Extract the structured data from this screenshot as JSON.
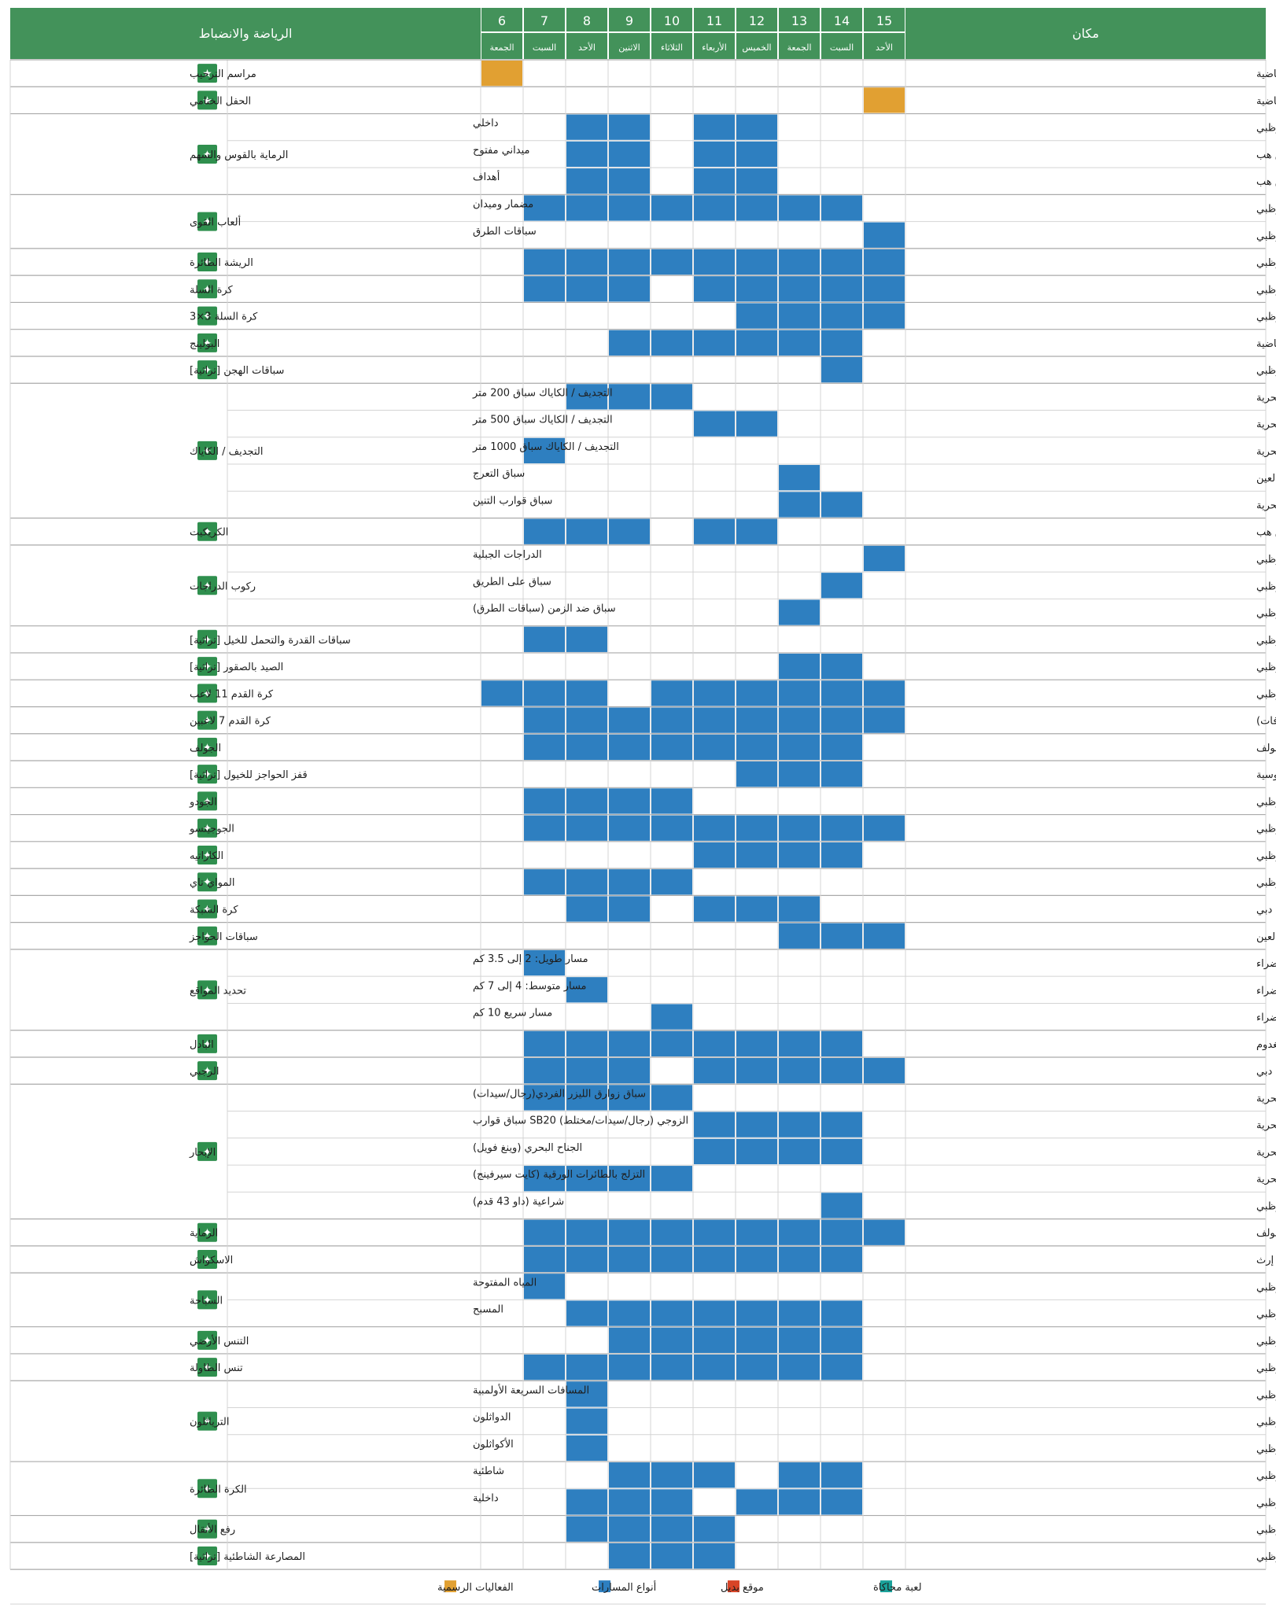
{
  "header": {
    "venue_label": "مكان",
    "sport_label": "الرياضة والانضباط",
    "days": [
      {
        "num": "15",
        "name": "الأحد"
      },
      {
        "num": "14",
        "name": "السبت"
      },
      {
        "num": "13",
        "name": "الجمعة"
      },
      {
        "num": "12",
        "name": "الخميس"
      },
      {
        "num": "11",
        "name": "الأربعاء"
      },
      {
        "num": "10",
        "name": "الثلاثاء"
      },
      {
        "num": "9",
        "name": "الاثنين"
      },
      {
        "num": "8",
        "name": "الأحد"
      },
      {
        "num": "7",
        "name": "السبت"
      },
      {
        "num": "6",
        "name": "الجمعة"
      }
    ]
  },
  "colors": {
    "header_green": "#43925a",
    "icon_green": "#2f8f4e",
    "competition_blue": "#2e7fc0",
    "ceremony_orange": "#e1a032",
    "alternate_red": "#d84427",
    "simulation_teal": "#1aa19a",
    "grid_line": "#d4d4d4",
    "group_line": "#aaaaaa"
  },
  "groups": [
    {
      "sport": "مراسم الترحيب",
      "icon": "star-icon",
      "rows": [
        {
          "venue": "استاد مدينة زايد الرياضية",
          "event": "",
          "days": [
            6
          ],
          "type": "ceremony"
        }
      ]
    },
    {
      "sport": "الحفل الختامي",
      "icon": "star-icon",
      "rows": [
        {
          "venue": "استاد مدينة زايد الرياضية",
          "event": "",
          "days": [
            15
          ],
          "type": "ceremony"
        }
      ]
    },
    {
      "sport": "الرماية بالقوس والسهم",
      "icon": "archery-icon",
      "rows": [
        {
          "venue": "مركز أدنيك أبوظبي",
          "event": "داخلي",
          "days": [
            8,
            9,
            11,
            12
          ]
        },
        {
          "venue": "أبوظبي كريكيت سبورتس هب",
          "event": "ميداني مفتوح",
          "days": [
            8,
            9,
            11,
            12
          ]
        },
        {
          "venue": "أبوظبي كريكيت سبورتس هب",
          "event": "أهداف",
          "days": [
            8,
            9,
            11,
            12
          ]
        }
      ]
    },
    {
      "sport": "ألعاب القوى",
      "icon": "athletics-icon",
      "rows": [
        {
          "venue": "جامعة نيويورك أبوظبي",
          "event": "مضمار وميدان",
          "days": [
            7,
            8,
            9,
            10,
            11,
            12,
            13,
            14
          ]
        },
        {
          "venue": "جزيرة الحديريات، أبوظبي",
          "event": "سباقات الطرق",
          "days": [
            15
          ]
        }
      ]
    },
    {
      "sport": "الريشة الطائرة",
      "icon": "badminton-icon",
      "rows": [
        {
          "venue": "مركز أدنيك أبوظبي",
          "event": "",
          "days": [
            7,
            8,
            9,
            10,
            11,
            12,
            13,
            14,
            15
          ]
        }
      ]
    },
    {
      "sport": "كرة السلة",
      "icon": "basketball-icon",
      "rows": [
        {
          "venue": "مركز أدنيك أبوظبي",
          "event": "",
          "days": [
            7,
            8,
            9,
            11,
            12,
            13,
            14,
            15
          ]
        }
      ]
    },
    {
      "sport": "كرة السلة 3×3",
      "icon": "basketball-3x3-icon",
      "rows": [
        {
          "venue": "مركز أدنيك أبوظبي",
          "event": "",
          "days": [
            12,
            13,
            14,
            15
          ]
        }
      ]
    },
    {
      "sport": "البولينج",
      "icon": "bowling-icon",
      "rows": [
        {
          "venue": "مركز خليفة الدولي للبولينج – مدينة زايد الرياضية",
          "event": "",
          "days": [
            9,
            10,
            11,
            12,
            13,
            14
          ]
        }
      ]
    },
    {
      "sport": "سباقات الهجن [تراثية]",
      "icon": "camel-racing-icon",
      "rows": [
        {
          "venue": "حلبة سباق الوثبة للهجن، أبوظبي",
          "event": "",
          "days": [
            14
          ]
        }
      ]
    },
    {
      "sport": "التجديف / الكاياك",
      "icon": "canoe-icon",
      "rows": [
        {
          "venue": "نادي أبوظبي للرياضات البحرية",
          "event": "التجديف / الكاياك سباق 200 متر",
          "days": [
            8,
            9,
            10
          ]
        },
        {
          "venue": "نادي أبوظبي للرياضات البحرية",
          "event": "التجديف / الكاياك سباق 500 متر",
          "days": [
            11,
            12
          ]
        },
        {
          "venue": "نادي أبوظبي للرياضات البحرية",
          "event": "التجديف / الكاياك سباق 1000 متر",
          "days": [
            7
          ]
        },
        {
          "venue": "وادي أدفنتشر، العين",
          "event": "سباق التعرج",
          "days": [
            13
          ]
        },
        {
          "venue": "نادي أبوظبي للرياضات البحرية",
          "event": "سباق قوارب التنين",
          "days": [
            13,
            14
          ]
        }
      ]
    },
    {
      "sport": "الكريكيت",
      "icon": "cricket-icon",
      "rows": [
        {
          "venue": "أبوظبي كريكيت سبورتس هب",
          "event": "",
          "days": [
            7,
            8,
            9,
            11,
            12
          ]
        }
      ]
    },
    {
      "sport": "ركوب الدراجات",
      "icon": "cycling-icon",
      "rows": [
        {
          "venue": "جزيرة الحديريات، أبوظبي",
          "event": "الدراجات الجبلية",
          "days": [
            15
          ]
        },
        {
          "venue": "جزيرة الحديريات، أبوظبي",
          "event": "سباق على الطريق",
          "days": [
            14
          ]
        },
        {
          "venue": "جزيرة الحديريات، أبوظبي",
          "event": "سباق ضد الزمن (سباقات الطرق)",
          "days": [
            13
          ]
        }
      ]
    },
    {
      "sport": "سباقات القدرة والتحمل للخيل [تراثية]",
      "icon": "endurance-icon",
      "rows": [
        {
          "venue": "مضمار الوثبة للسباق، أبوظبي",
          "event": "",
          "days": [
            7,
            8
          ]
        }
      ]
    },
    {
      "sport": "الصيد بالصقور [تراثية]",
      "icon": "falconry-icon",
      "rows": [
        {
          "venue": "نادي الفلاح للصقارين، أبوظبي",
          "event": "",
          "days": [
            13,
            14
          ]
        }
      ]
    },
    {
      "sport": "كرة القدم 11 لاعب",
      "icon": "football-icon",
      "rows": [
        {
          "venue": "مدينة زايد الرياضية، أبوظبي",
          "event": "",
          "days": [
            6,
            7,
            8,
            10,
            11,
            12,
            13,
            14,
            15
          ]
        }
      ]
    },
    {
      "sport": "كرة القدم 7 لاعبين",
      "icon": "football-7-icon",
      "rows": [
        {
          "venue": "مدينة زايد الرياضية، أبوظبي / أبوظبي كريكيت سبورتس هب (للإضافات)",
          "event": "",
          "days": [
            7,
            8,
            9,
            10,
            11,
            12,
            13,
            14,
            15
          ]
        }
      ]
    },
    {
      "sport": "الجولف",
      "icon": "golf-icon",
      "rows": [
        {
          "venue": "ياس لينكس، أبوظبي، نادي العين للفروسية والرماية والجولف",
          "event": "",
          "days": [
            7,
            8,
            9,
            10,
            11,
            12,
            13,
            14
          ]
        }
      ]
    },
    {
      "sport": "قفز الحواجز للخيول [تراثية]",
      "icon": "equestrian-icon",
      "rows": [
        {
          "venue": "نادي أبوظبي للفروسية",
          "event": "",
          "days": [
            12,
            13,
            14
          ]
        }
      ]
    },
    {
      "sport": "الجودو",
      "icon": "judo-icon",
      "rows": [
        {
          "venue": "مركز أدنيك أبوظبي",
          "event": "",
          "days": [
            7,
            8,
            9,
            10
          ]
        }
      ]
    },
    {
      "sport": "الجوجيتسو",
      "icon": "jujitsu-icon",
      "rows": [
        {
          "venue": "مدينة الشيخ زايد الرياضية، مبادلة أرينا، أبوظبي",
          "event": "",
          "days": [
            7,
            8,
            9,
            10,
            11,
            12,
            13,
            14,
            15
          ]
        }
      ]
    },
    {
      "sport": "الكاراتيه",
      "icon": "karate-icon",
      "rows": [
        {
          "venue": "مركز أدنيك أبوظبي",
          "event": "",
          "days": [
            11,
            12,
            13,
            14
          ]
        }
      ]
    },
    {
      "sport": "المواي تاي",
      "icon": "muay-thai-icon",
      "rows": [
        {
          "venue": "سبيس 42 أرينا، أبوظبي",
          "event": "",
          "days": [
            7,
            8,
            9,
            10
          ]
        }
      ]
    },
    {
      "sport": "كرة الشبكة",
      "icon": "netball-icon",
      "rows": [
        {
          "venue": "استاد ذا سيفنز، دبي",
          "event": "",
          "days": [
            8,
            9,
            11,
            12,
            13
          ]
        }
      ]
    },
    {
      "sport": "سباقات الحواجز",
      "icon": "obstacle-icon",
      "rows": [
        {
          "venue": "وادي أدفنتشر، العين",
          "event": "",
          "days": [
            13,
            14,
            15
          ]
        }
      ]
    },
    {
      "sport": "تحديد المواقع",
      "icon": "orienteering-icon",
      "rows": [
        {
          "venue": "مبزرة الخضراء",
          "event": "مسار طويل: 2 إلى 3.5 كم",
          "days": [
            7
          ]
        },
        {
          "venue": "مبزرة الخضراء",
          "event": "مسار متوسط: 4 إلى 7 كم",
          "days": [
            8
          ]
        },
        {
          "venue": "مبزرة الخضراء",
          "event": "مسار سريع 10 كم",
          "days": [
            10
          ]
        }
      ]
    },
    {
      "sport": "البادل",
      "icon": "padel-icon",
      "rows": [
        {
          "venue": "أبوظبي بادل كينغدوم",
          "event": "",
          "days": [
            7,
            8,
            9,
            10,
            11,
            12,
            13,
            14
          ]
        }
      ]
    },
    {
      "sport": "الرجبي",
      "icon": "rugby-icon",
      "rows": [
        {
          "venue": "استاد ذا سيفنز، دبي",
          "event": "",
          "days": [
            7,
            8,
            9,
            11,
            12,
            13,
            14,
            15
          ]
        }
      ]
    },
    {
      "sport": "الإبحار",
      "icon": "sailing-icon",
      "rows": [
        {
          "venue": "مارينا، نادي ابوظبي للرياضات البحرية",
          "event": "سباق زوارق الليزر الفردي(رجال/سيدات)",
          "days": [
            7,
            8,
            9,
            10
          ]
        },
        {
          "venue": "مارينا، نادي أبوظبي للرياضات البحرية",
          "event": "الزوجي (رجال/سيدات/مختلط) SB20 سباق قوارب",
          "days": [
            11,
            12,
            13,
            14
          ]
        },
        {
          "venue": "مارينا، نادي أبوظبي للرياضات البحرية",
          "event": "الجناح البحري (وينغ فويل)",
          "days": [
            11,
            12,
            13,
            14
          ]
        },
        {
          "venue": "مارينا، نادي ابوظبي للرياضات البحرية",
          "event": "التزلج بالطائرات الورقية (كايت سيرفينج)",
          "days": [
            7,
            8,
            9,
            10
          ]
        },
        {
          "venue": "شاطئ الكورنيش، أبوظبي",
          "event": "شراعية (داو 43 قدم)",
          "days": [
            14
          ]
        }
      ]
    },
    {
      "sport": "الرماية",
      "icon": "shooting-icon",
      "rows": [
        {
          "venue": "نادي العين للفروسية والرماية والجولف",
          "event": "",
          "days": [
            7,
            8,
            9,
            10,
            11,
            12,
            13,
            14,
            15
          ]
        }
      ]
    },
    {
      "sport": "الاسكواش",
      "icon": "squash-icon",
      "rows": [
        {
          "venue": "أكاديمية فاطمة بنت مبارك / إرث",
          "event": "",
          "days": [
            7,
            8,
            9,
            10,
            11,
            12,
            13,
            14
          ]
        }
      ]
    },
    {
      "sport": "السباحة",
      "icon": "swimming-icon",
      "rows": [
        {
          "venue": "قصر الإمارات، أبوظبي",
          "event": "المياه المفتوحة",
          "days": [
            7
          ]
        },
        {
          "venue": "مسبح مدينة محمد بن زايد، أبوظبي",
          "event": "المسبح",
          "days": [
            8,
            9,
            10,
            11,
            12,
            13,
            14
          ]
        }
      ]
    },
    {
      "sport": "التنس الأرضي",
      "icon": "tennis-icon",
      "rows": [
        {
          "venue": "مدينة زايد الرياضية، أبوظبي",
          "event": "",
          "days": [
            9,
            10,
            11,
            12,
            13,
            14
          ]
        }
      ]
    },
    {
      "sport": "تنس الطاولة",
      "icon": "table-tennis-icon",
      "rows": [
        {
          "venue": "مركز أدنيك أبوظبي",
          "event": "",
          "days": [
            7,
            8,
            9,
            10,
            11,
            12,
            13,
            14
          ]
        }
      ]
    },
    {
      "sport": "الترياثلون",
      "icon": "triathlon-icon",
      "rows": [
        {
          "venue": "جزيرة الحديريات، أبوظبي",
          "event": "المسافات السريعة الأولمبية",
          "days": [
            8
          ]
        },
        {
          "venue": "جزيرة الحديريات، أبوظبي",
          "event": "الدواثلون",
          "days": [
            8
          ]
        },
        {
          "venue": "جزيرة الحديريات، أبوظبي",
          "event": "الأكواثلون",
          "days": [
            8
          ]
        }
      ]
    },
    {
      "sport": "الكرة الطائرة",
      "icon": "volleyball-icon",
      "rows": [
        {
          "venue": "شاطئ الكورنيش، أبوظبي",
          "event": "شاطئية",
          "days": [
            9,
            10,
            11,
            13,
            14
          ]
        },
        {
          "venue": "مركز أدنيك أبوظبي",
          "event": "داخلية",
          "days": [
            8,
            9,
            10,
            12,
            13,
            14
          ]
        }
      ]
    },
    {
      "sport": "رفع الأثقال",
      "icon": "weightlifting-icon",
      "rows": [
        {
          "venue": "مركز أدنيك أبوظبي",
          "event": "",
          "days": [
            8,
            9,
            10,
            11
          ]
        }
      ]
    },
    {
      "sport": "المصارعة الشاطئية [تراثية]",
      "icon": "wrestling-icon",
      "rows": [
        {
          "venue": "شاطئ الكورنيش، أبوظبي",
          "event": "",
          "days": [
            9,
            10,
            11
          ]
        }
      ]
    }
  ],
  "legend": [
    {
      "label": "لعبة محاكاة",
      "color": "#1aa19a"
    },
    {
      "label": "موقع بديل",
      "color": "#d84427"
    },
    {
      "label": "أنواع المسارات",
      "color": "#2e7fc0"
    },
    {
      "label": "الفعاليات الرسمية",
      "color": "#e1a032"
    }
  ]
}
